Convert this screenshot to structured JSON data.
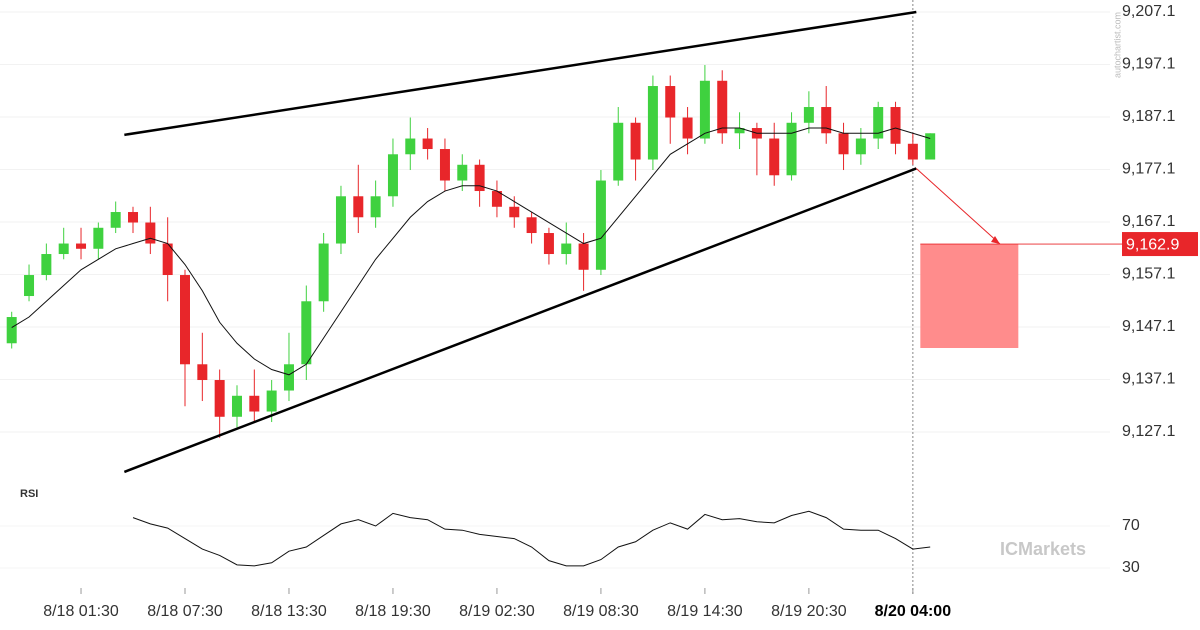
{
  "chart_data": {
    "type": "candlestick",
    "categories": [
      null,
      null,
      null,
      null,
      "8/18 01:30",
      null,
      null,
      null,
      null,
      null,
      "8/18 07:30",
      null,
      null,
      null,
      null,
      null,
      "8/18 13:30",
      null,
      null,
      null,
      null,
      null,
      "8/18 19:30",
      null,
      null,
      null,
      null,
      null,
      "8/19 02:30",
      null,
      null,
      null,
      null,
      null,
      "8/19 08:30",
      null,
      null,
      null,
      null,
      null,
      "8/19 14:30",
      null,
      null,
      null,
      null,
      null,
      "8/19 20:30",
      null,
      null,
      null,
      null,
      null,
      "8/20 04:00",
      null
    ],
    "open": [
      9144,
      9153,
      9157,
      9161,
      9163,
      9162,
      9166,
      9169,
      9167,
      9163,
      9157,
      9140,
      9137,
      9130,
      9134,
      9131,
      9135,
      9140,
      9152,
      9163,
      9172,
      9168,
      9172,
      9180,
      9183,
      9181,
      9175,
      9178,
      9173,
      9170,
      9168,
      9165,
      9161,
      9163,
      9158,
      9175,
      9186,
      9179,
      9193,
      9187,
      9183,
      9194,
      9184,
      9185,
      9183,
      9176,
      9186,
      9189,
      9184,
      9180,
      9183,
      9189,
      9182,
      9179
    ],
    "high": [
      9150,
      9159,
      9163,
      9166,
      9166,
      9167,
      9171,
      9170,
      9170,
      9168,
      9158,
      9146,
      9139,
      9136,
      9139,
      9137,
      9146,
      9155,
      9165,
      9174,
      9178,
      9175,
      9183,
      9187,
      9185,
      9183,
      9180,
      9179,
      9175,
      9172,
      9169,
      9166,
      9167,
      9165,
      9177,
      9189,
      9187,
      9195,
      9195,
      9189,
      9197,
      9196,
      9188,
      9186,
      9186,
      9188,
      9192,
      9193,
      9186,
      9185,
      9190,
      9190,
      9184,
      9184
    ],
    "low": [
      9143,
      9152,
      9156,
      9160,
      9160,
      9160,
      9165,
      9165,
      9161,
      9152,
      9132,
      9133,
      9126,
      9128,
      9129,
      9129,
      9133,
      9137,
      9150,
      9161,
      9165,
      9166,
      9170,
      9177,
      9179,
      9173,
      9173,
      9170,
      9168,
      9166,
      9163,
      9159,
      9159,
      9154,
      9157,
      9174,
      9175,
      9177,
      9182,
      9180,
      9182,
      9182,
      9181,
      9176,
      9174,
      9175,
      9184,
      9182,
      9177,
      9178,
      9181,
      9180,
      9178,
      9179
    ],
    "close": [
      9149,
      9157,
      9161,
      9163,
      9162,
      9166,
      9169,
      9167,
      9163,
      9157,
      9140,
      9137,
      9130,
      9134,
      9131,
      9135,
      9140,
      9152,
      9163,
      9172,
      9168,
      9172,
      9180,
      9183,
      9181,
      9175,
      9178,
      9173,
      9170,
      9168,
      9165,
      9161,
      9163,
      9158,
      9175,
      9186,
      9179,
      9193,
      9187,
      9183,
      9194,
      9184,
      9185,
      9183,
      9176,
      9186,
      9189,
      9184,
      9180,
      9183,
      9189,
      9182,
      9179,
      9184
    ],
    "ma": [
      9147,
      9149,
      9152,
      9155,
      9158,
      9160,
      9162,
      9163,
      9164,
      9163,
      9159,
      9154,
      9148,
      9144,
      9141,
      9139,
      9138,
      9140,
      9145,
      9150,
      9155,
      9160,
      9164,
      9168,
      9171,
      9173,
      9174,
      9174,
      9173,
      9171,
      9169,
      9167,
      9165,
      9163,
      9164,
      9168,
      9172,
      9176,
      9180,
      9182,
      9184,
      9185,
      9185,
      9184,
      9184,
      9184,
      9185,
      9185,
      9184,
      9184,
      9184,
      9185,
      9184,
      9183
    ],
    "up_color": "#3fd13f",
    "down_color": "#e8262a",
    "ylim": [
      9117.1,
      9209.1
    ],
    "yticks": [
      {
        "value": 9207.1,
        "label": "9,207.1"
      },
      {
        "value": 9197.1,
        "label": "9,197.1"
      },
      {
        "value": 9187.1,
        "label": "9,187.1"
      },
      {
        "value": 9177.1,
        "label": "9,177.1"
      },
      {
        "value": 9167.1,
        "label": "9,167.1"
      },
      {
        "value": 9157.1,
        "label": "9,157.1"
      },
      {
        "value": 9147.1,
        "label": "9,147.1"
      },
      {
        "value": 9137.1,
        "label": "9,137.1"
      },
      {
        "value": 9127.1,
        "label": "9,127.1"
      }
    ],
    "trendlines": [
      {
        "values": [
          9183.7,
          9207.1
        ]
      },
      {
        "values": [
          9119.5,
          9177.3
        ]
      }
    ],
    "target_zone": [
      9162.9,
      9143.1
    ],
    "target_color": "#ff8c8c",
    "price_marker": {
      "value": 9162.9,
      "label": "9,162.9"
    },
    "rsi": {
      "title": "RSI",
      "ylim": [
        20,
        100
      ],
      "yticks": [
        70,
        30
      ],
      "values": [
        null,
        null,
        null,
        null,
        null,
        null,
        null,
        78,
        72,
        68,
        58,
        48,
        42,
        33,
        32,
        35,
        46,
        50,
        61,
        72,
        76,
        70,
        82,
        78,
        76,
        67,
        66,
        62,
        60,
        58,
        50,
        37,
        32,
        32,
        38,
        50,
        55,
        66,
        73,
        67,
        81,
        76,
        77,
        74,
        73,
        80,
        84,
        78,
        67,
        66,
        66,
        58,
        48,
        50
      ]
    },
    "watermark": "autochartist.com",
    "brand": "ICMarkets"
  }
}
